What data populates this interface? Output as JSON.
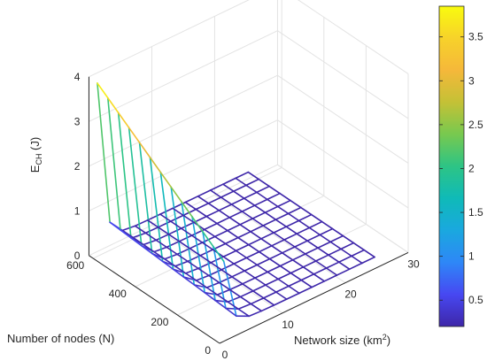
{
  "chart_data": {
    "type": "surface",
    "title": "",
    "xlabel": {
      "main": "Network size (km",
      "sup": "2",
      "close": ")"
    },
    "ylabel": "Number of nodes (N)",
    "zlabel": {
      "main": "E",
      "sub": "CH",
      "unit": " (J)"
    },
    "x": [
      1,
      3,
      5,
      7,
      9,
      11,
      13,
      15,
      17,
      19,
      21,
      23,
      25
    ],
    "y": [
      10,
      60,
      110,
      160,
      210,
      260,
      310,
      360,
      410,
      460,
      510,
      560,
      610
    ],
    "x_ticks": [
      0,
      10,
      20,
      30
    ],
    "y_ticks": [
      0,
      200,
      400,
      600
    ],
    "z_ticks": [
      0,
      1,
      2,
      3,
      4
    ],
    "xlim": [
      0,
      30
    ],
    "ylim": [
      0,
      620
    ],
    "zlim": [
      0,
      4
    ],
    "colormap": "parula",
    "colorbar": {
      "range": [
        0.2,
        3.85
      ],
      "ticks": [
        "0.5",
        "1",
        "1.5",
        "2",
        "2.5",
        "3",
        "3.5"
      ]
    },
    "surface_description": "E_CH rises steeply as network size approaches 0 (about 3.6 J at N=600, 1.6 J at N=10) and flattens near 0.2 J for larger networks",
    "grid": true
  }
}
